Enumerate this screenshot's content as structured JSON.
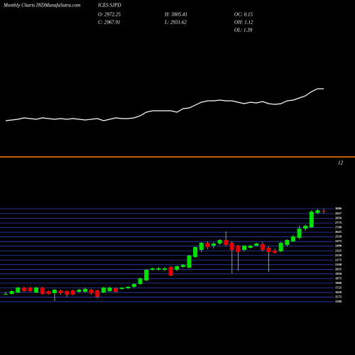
{
  "header": {
    "site": "Monthly Charts INDMunafaSutra.com",
    "symbol": "ICES SJPD",
    "open": "O: 2972.25",
    "close": "C: 2967.91",
    "high": "H: 3005.41",
    "low": "L: 2931.62",
    "oc": "OC: 0.15",
    "oh": "OH: 1.12",
    "ol": "OL: 1.39"
  },
  "chart_data": [
    {
      "type": "line",
      "color": "#ffffff",
      "ylim": [
        0,
        100
      ],
      "values": [
        10,
        11,
        12,
        14,
        13,
        12,
        14,
        13,
        12,
        13,
        12,
        13,
        12,
        11,
        12,
        13,
        10,
        12,
        14,
        13,
        13,
        14,
        17,
        22,
        24,
        24,
        24,
        24,
        22,
        27,
        28,
        32,
        36,
        38,
        38,
        39,
        38,
        38,
        36,
        34,
        36,
        35,
        37,
        34,
        33,
        34,
        38,
        39,
        42,
        45,
        51,
        55,
        55
      ]
    },
    {
      "type": "candlestick",
      "label": "12",
      "up_color": "#00e000",
      "down_color": "#e00000",
      "grid_color": "#3040c0",
      "grid": true,
      "ylim": [
        1450,
        3050
      ],
      "yticks": [
        3006,
        2927,
        2850,
        2775,
        2700,
        2625,
        2550,
        2475,
        2400,
        2325,
        2250,
        2175,
        2100,
        2025,
        1950,
        1875,
        1800,
        1725,
        1650,
        1575,
        1500
      ],
      "open": [
        1615,
        1626,
        1649,
        1730,
        1730,
        1649,
        1730,
        1672,
        1638,
        1684,
        1672,
        1684,
        1661,
        1661,
        1695,
        1684,
        1649,
        1672,
        1718,
        1707,
        1718,
        1741,
        1787,
        1845,
        2017,
        2017,
        2017,
        2063,
        2017,
        2063,
        2052,
        2224,
        2339,
        2454,
        2408,
        2443,
        2500,
        2454,
        2408,
        2339,
        2374,
        2408,
        2431,
        2374,
        2328,
        2316,
        2420,
        2477,
        2535,
        2684,
        2707,
        2937,
        2972.25
      ],
      "high": [
        1661,
        1684,
        1741,
        1741,
        1741,
        1741,
        1741,
        1684,
        1707,
        1695,
        1684,
        1695,
        1707,
        1730,
        1707,
        1695,
        1741,
        1741,
        1730,
        1730,
        1753,
        1798,
        1890,
        2029,
        2052,
        2063,
        2063,
        2075,
        2086,
        2109,
        2259,
        2397,
        2466,
        2477,
        2466,
        2512,
        2638,
        2477,
        2420,
        2420,
        2420,
        2454,
        2466,
        2397,
        2362,
        2466,
        2512,
        2580,
        2730,
        2753,
        2983,
        3000,
        3005.41
      ],
      "low": [
        1607,
        1615,
        1638,
        1661,
        1661,
        1638,
        1615,
        1615,
        1511,
        1615,
        1580,
        1607,
        1649,
        1649,
        1615,
        1560,
        1638,
        1661,
        1649,
        1695,
        1707,
        1730,
        1775,
        1833,
        2005,
        2005,
        1994,
        1914,
        1994,
        2052,
        2040,
        2213,
        2305,
        2351,
        2362,
        2420,
        2408,
        1960,
        2000,
        2316,
        2362,
        2397,
        2316,
        1983,
        2282,
        2305,
        2397,
        2466,
        2512,
        2650,
        2696,
        2920,
        2931.62
      ],
      "close": [
        1626,
        1672,
        1730,
        1672,
        1672,
        1730,
        1626,
        1626,
        1695,
        1638,
        1615,
        1615,
        1695,
        1707,
        1638,
        1580,
        1730,
        1730,
        1661,
        1730,
        1741,
        1787,
        1879,
        2017,
        2040,
        2040,
        2040,
        1925,
        2075,
        2098,
        2247,
        2385,
        2454,
        2385,
        2443,
        2500,
        2420,
        2339,
        2305,
        2408,
        2408,
        2443,
        2339,
        2305,
        2293,
        2454,
        2500,
        2558,
        2684,
        2730,
        2960,
        2983,
        2967.91
      ]
    }
  ]
}
